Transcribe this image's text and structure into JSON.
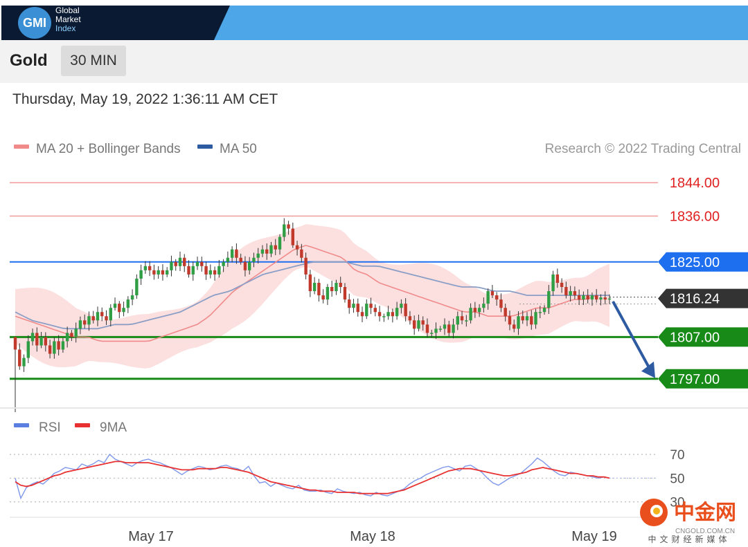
{
  "header": {
    "logo_initials": "GMI",
    "logo_lines": [
      "Global",
      "Market",
      "Index"
    ]
  },
  "instrument": "Gold",
  "interval": "30 MIN",
  "datetime": "Thursday, May 19, 2022 1:36:11 AM CET",
  "legend": [
    {
      "label": "MA 20 + Bollinger Bands",
      "color": "#f08a8a"
    },
    {
      "label": "MA 50",
      "color": "#2d5aa0"
    }
  ],
  "credit": "Research © 2022 Trading Central",
  "rsi_legend": [
    {
      "label": "RSI",
      "color": "#5b7fe0"
    },
    {
      "label": "9MA",
      "color": "#e83030"
    }
  ],
  "watermark": {
    "logo_text": "中金网",
    "url": "CNGOLD.COM.CN",
    "tagline": "中文财经新媒体"
  },
  "chart_data": {
    "type": "candlestick",
    "price_ylim": [
      1790,
      1848
    ],
    "x_labels": [
      "May 17",
      "May 18",
      "May 19"
    ],
    "current_price": {
      "label": "1816.24",
      "value": 1816.24,
      "color": "#333333"
    },
    "levels": [
      {
        "label": "1844.00",
        "value": 1844,
        "kind": "resistance",
        "color": "#e02020"
      },
      {
        "label": "1836.00",
        "value": 1836,
        "kind": "resistance",
        "color": "#e02020"
      },
      {
        "label": "1825.00",
        "value": 1825,
        "kind": "pivot",
        "color": "#1e6ef0"
      },
      {
        "label": "1807.00",
        "value": 1807,
        "kind": "support",
        "color": "#178a17"
      },
      {
        "label": "1797.00",
        "value": 1797,
        "kind": "support",
        "color": "#178a17"
      }
    ],
    "arrow": {
      "from": 1816.2,
      "to": 1797.5,
      "direction": "down",
      "color": "#2d5aa0"
    },
    "close": [
      1804,
      1800,
      1802,
      1806,
      1808,
      1805,
      1807,
      1805,
      1803,
      1806,
      1804,
      1806,
      1808,
      1807,
      1809,
      1811,
      1810,
      1812,
      1811,
      1813,
      1812,
      1811,
      1814,
      1815,
      1813,
      1814,
      1816,
      1817,
      1821,
      1823,
      1824,
      1823,
      1822,
      1823,
      1822,
      1823,
      1825,
      1824,
      1826,
      1824,
      1822,
      1824,
      1825,
      1824,
      1822,
      1823,
      1822,
      1824,
      1825,
      1826,
      1828,
      1826,
      1825,
      1823,
      1825,
      1826,
      1827,
      1828,
      1827,
      1829,
      1828,
      1831,
      1834,
      1833,
      1829,
      1828,
      1826,
      1822,
      1818,
      1820,
      1817,
      1816,
      1819,
      1818,
      1820,
      1819,
      1816,
      1814,
      1815,
      1813,
      1812,
      1815,
      1814,
      1813,
      1812,
      1812,
      1813,
      1812,
      1814,
      1815,
      1812,
      1811,
      1809,
      1811,
      1810,
      1808,
      1808,
      1809,
      1809,
      1810,
      1808,
      1810,
      1812,
      1811,
      1811,
      1814,
      1813,
      1814,
      1815,
      1818,
      1817,
      1816,
      1814,
      1812,
      1810,
      1809,
      1812,
      1811,
      1812,
      1810,
      1813,
      1813,
      1814,
      1818,
      1822,
      1820,
      1819,
      1817,
      1818,
      1817,
      1816,
      1817,
      1816,
      1817,
      1816,
      1816.5,
      1816,
      1816.24
    ],
    "ma20": [
      1812,
      1811,
      1810,
      1809,
      1808,
      1807,
      1807,
      1806,
      1806,
      1806,
      1806,
      1806,
      1807,
      1808,
      1809,
      1810,
      1812,
      1815,
      1818,
      1820,
      1822,
      1824,
      1826,
      1828,
      1829,
      1828,
      1827,
      1826,
      1823,
      1822,
      1820,
      1819,
      1818,
      1817,
      1816,
      1815,
      1814,
      1813,
      1813,
      1812,
      1812,
      1812,
      1813,
      1814,
      1814,
      1815,
      1816,
      1816,
      1817,
      1817
    ],
    "ma50": [
      1813,
      1811,
      1810,
      1809,
      1809,
      1809,
      1810,
      1810,
      1811,
      1812,
      1813,
      1815,
      1817,
      1818,
      1820,
      1822,
      1823,
      1824,
      1825,
      1825,
      1825,
      1824,
      1824,
      1823,
      1822,
      1821,
      1820,
      1819,
      1819,
      1818,
      1818,
      1817,
      1817,
      1817,
      1817,
      1817,
      1817
    ],
    "rsi_levels": [
      {
        "label": "70",
        "value": 70
      },
      {
        "label": "50",
        "value": 50
      },
      {
        "label": "30",
        "value": 30
      }
    ],
    "rsi_ylim": [
      10,
      80
    ],
    "rsi": [
      50,
      33,
      42,
      45,
      47,
      45,
      49,
      54,
      56,
      59,
      58,
      57,
      62,
      60,
      62,
      65,
      63,
      70,
      66,
      64,
      62,
      60,
      63,
      65,
      66,
      64,
      63,
      61,
      59,
      56,
      53,
      56,
      58,
      60,
      59,
      57,
      58,
      60,
      61,
      59,
      58,
      56,
      60,
      52,
      46,
      47,
      43,
      46,
      44,
      42,
      41,
      44,
      40,
      39,
      39,
      40,
      38,
      37,
      41,
      39,
      38,
      37,
      38,
      36,
      35,
      38,
      36,
      35,
      37,
      39,
      41,
      45,
      48,
      50,
      53,
      55,
      57,
      59,
      60,
      58,
      56,
      60,
      61,
      58,
      55,
      50,
      46,
      44,
      47,
      50,
      52,
      54,
      58,
      62,
      67,
      64,
      60,
      56,
      53,
      52,
      55,
      54,
      53,
      52,
      51,
      50,
      51,
      50
    ],
    "rsi_ma": [
      47,
      44,
      43,
      44,
      46,
      48,
      50,
      52,
      53,
      55,
      56,
      57,
      58,
      59,
      60,
      61,
      62,
      63,
      64,
      64,
      63,
      63,
      63,
      63,
      63,
      62,
      61,
      60,
      59,
      58,
      57,
      57,
      57,
      58,
      58,
      58,
      58,
      59,
      59,
      58,
      57,
      56,
      55,
      53,
      51,
      49,
      47,
      46,
      45,
      44,
      43,
      42,
      41,
      40,
      40,
      39,
      39,
      39,
      38,
      38,
      38,
      38,
      37,
      37,
      37,
      37,
      37,
      37,
      38,
      39,
      40,
      42,
      44,
      46,
      48,
      50,
      52,
      54,
      56,
      57,
      58,
      58,
      58,
      57,
      56,
      55,
      54,
      53,
      52,
      52,
      53,
      54,
      55,
      57,
      58,
      59,
      58,
      57,
      56,
      55,
      54,
      54,
      53,
      52,
      52,
      51,
      51,
      50
    ]
  }
}
